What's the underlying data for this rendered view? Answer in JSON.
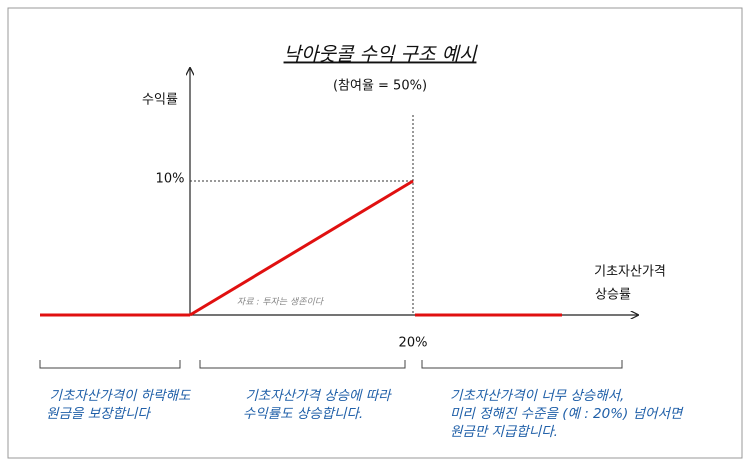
{
  "title": "낙아웃콜 수익 구조 예시",
  "subtitle": "(참여율 = 50%)",
  "y_axis_label": "수익률",
  "x_axis_label": [
    "기초자산가격",
    "상승률"
  ],
  "y_marker": "10%",
  "x_marker": "20%",
  "source": "자료 : 투자는 생존이다",
  "regions": [
    {
      "lines": [
        "기초자산가격이 하락해도",
        "원금을 보장합니다"
      ]
    },
    {
      "lines": [
        "기초자산가격 상승에 따라",
        "수익률도 상승합니다."
      ]
    },
    {
      "lines": [
        "기초자산가격이 너무 상승해서,",
        "미리 정해진 수준을 (예 : 20%) 넘어서면",
        "원금만 지급합니다."
      ]
    }
  ]
}
